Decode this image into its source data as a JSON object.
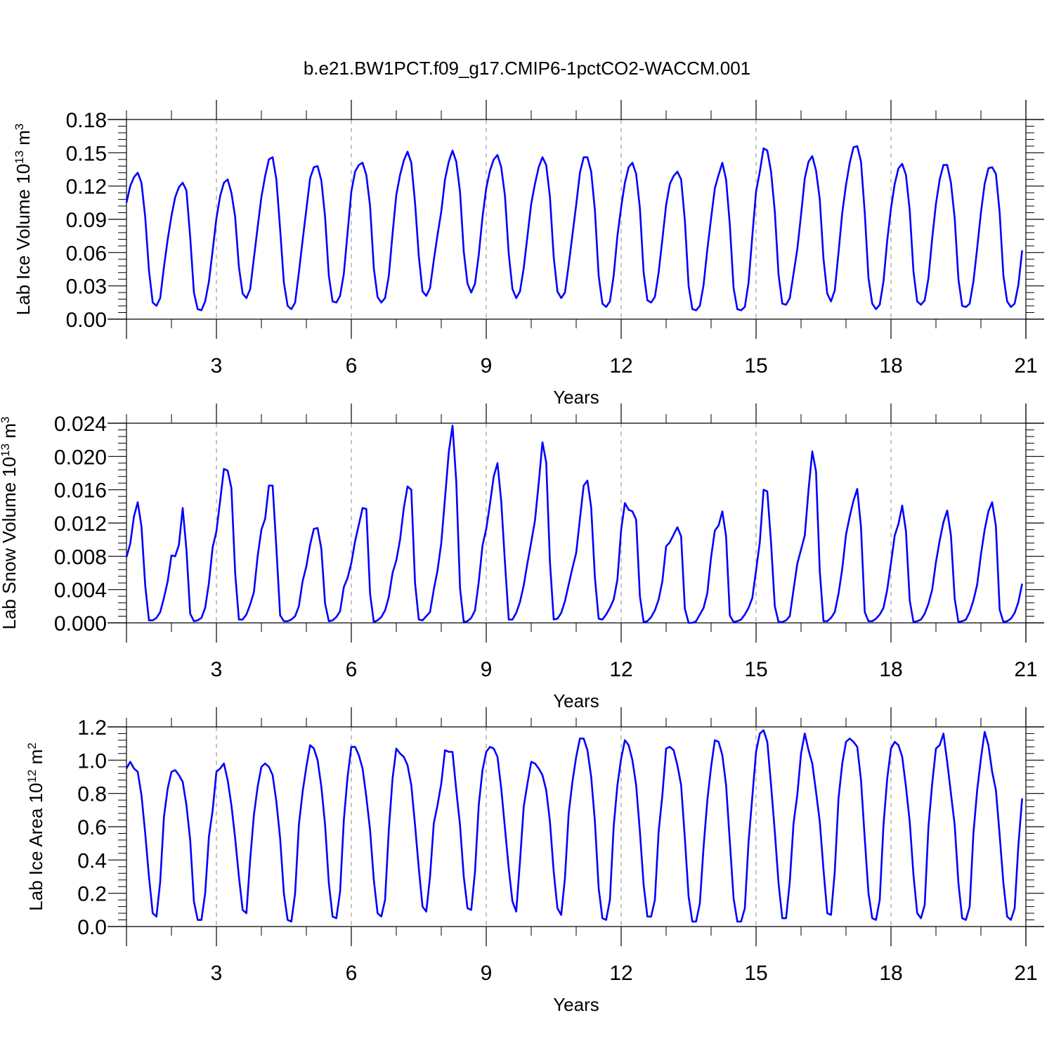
{
  "title": "b.e21.BW1PCT.f09_g17.CMIP6-1pctCO2-WACCM.001",
  "colors": {
    "series": "#0000ff",
    "axis": "#000000",
    "grid": "#888888"
  },
  "chart_data": [
    {
      "type": "line",
      "ylabel": "Lab Ice Volume 10",
      "ylabel_exp": "13",
      "ylabel_unit": " m",
      "ylabel_unit_exp": "3",
      "xlabel": "Years",
      "xlim": [
        1,
        21
      ],
      "ylim": [
        0.0,
        0.18
      ],
      "xticks": [
        3,
        6,
        9,
        12,
        15,
        18,
        21
      ],
      "yticks": [
        0.0,
        0.03,
        0.06,
        0.09,
        0.12,
        0.15,
        0.18
      ],
      "ytick_labels": [
        "0.00",
        "0.03",
        "0.06",
        "0.09",
        "0.12",
        "0.15",
        "0.18"
      ],
      "grid": "dashed vertical at x ticks",
      "series": [
        {
          "x_start": 1.0,
          "x_step": 0.0833333,
          "values": [
            0.105,
            0.12,
            0.128,
            0.132,
            0.123,
            0.092,
            0.044,
            0.015,
            0.012,
            0.019,
            0.047,
            0.072,
            0.093,
            0.11,
            0.119,
            0.123,
            0.116,
            0.074,
            0.024,
            0.009,
            0.008,
            0.016,
            0.034,
            0.062,
            0.091,
            0.111,
            0.123,
            0.126,
            0.114,
            0.092,
            0.047,
            0.023,
            0.019,
            0.027,
            0.055,
            0.083,
            0.11,
            0.129,
            0.144,
            0.146,
            0.126,
            0.081,
            0.033,
            0.012,
            0.009,
            0.015,
            0.042,
            0.071,
            0.099,
            0.127,
            0.137,
            0.138,
            0.125,
            0.092,
            0.039,
            0.016,
            0.015,
            0.021,
            0.041,
            0.078,
            0.115,
            0.133,
            0.139,
            0.141,
            0.13,
            0.102,
            0.046,
            0.02,
            0.015,
            0.019,
            0.039,
            0.077,
            0.112,
            0.13,
            0.143,
            0.151,
            0.141,
            0.105,
            0.057,
            0.025,
            0.021,
            0.028,
            0.053,
            0.076,
            0.097,
            0.126,
            0.142,
            0.152,
            0.142,
            0.115,
            0.061,
            0.032,
            0.024,
            0.032,
            0.058,
            0.092,
            0.118,
            0.134,
            0.144,
            0.148,
            0.137,
            0.111,
            0.059,
            0.027,
            0.019,
            0.025,
            0.046,
            0.075,
            0.104,
            0.122,
            0.137,
            0.146,
            0.139,
            0.11,
            0.056,
            0.025,
            0.019,
            0.024,
            0.049,
            0.076,
            0.103,
            0.132,
            0.146,
            0.146,
            0.133,
            0.098,
            0.039,
            0.014,
            0.011,
            0.016,
            0.039,
            0.075,
            0.101,
            0.123,
            0.137,
            0.141,
            0.131,
            0.1,
            0.042,
            0.017,
            0.015,
            0.02,
            0.042,
            0.072,
            0.103,
            0.122,
            0.129,
            0.133,
            0.126,
            0.089,
            0.03,
            0.009,
            0.008,
            0.012,
            0.031,
            0.063,
            0.091,
            0.118,
            0.13,
            0.141,
            0.126,
            0.085,
            0.028,
            0.009,
            0.008,
            0.011,
            0.033,
            0.075,
            0.115,
            0.133,
            0.154,
            0.152,
            0.133,
            0.097,
            0.04,
            0.014,
            0.013,
            0.019,
            0.041,
            0.063,
            0.094,
            0.127,
            0.142,
            0.147,
            0.134,
            0.108,
            0.054,
            0.023,
            0.016,
            0.026,
            0.06,
            0.096,
            0.121,
            0.141,
            0.155,
            0.156,
            0.142,
            0.096,
            0.037,
            0.014,
            0.009,
            0.013,
            0.034,
            0.071,
            0.1,
            0.122,
            0.136,
            0.14,
            0.13,
            0.098,
            0.043,
            0.016,
            0.013,
            0.017,
            0.037,
            0.073,
            0.104,
            0.126,
            0.139,
            0.139,
            0.123,
            0.091,
            0.036,
            0.012,
            0.011,
            0.014,
            0.034,
            0.064,
            0.096,
            0.122,
            0.136,
            0.137,
            0.131,
            0.096,
            0.039,
            0.016,
            0.011,
            0.014,
            0.031,
            0.062
          ]
        }
      ]
    },
    {
      "type": "line",
      "ylabel": "Lab Snow Volume 10",
      "ylabel_exp": "13",
      "ylabel_unit": " m",
      "ylabel_unit_exp": "3",
      "xlabel": "Years",
      "xlim": [
        1,
        21
      ],
      "ylim": [
        0.0,
        0.024
      ],
      "xticks": [
        3,
        6,
        9,
        12,
        15,
        18,
        21
      ],
      "yticks": [
        0.0,
        0.004,
        0.008,
        0.012,
        0.016,
        0.02,
        0.024
      ],
      "ytick_labels": [
        "0.000",
        "0.004",
        "0.008",
        "0.012",
        "0.016",
        "0.020",
        "0.024"
      ],
      "grid": "dashed vertical at x ticks",
      "series": [
        {
          "x_start": 1.0,
          "x_step": 0.0833333,
          "values": [
            0.0079,
            0.0095,
            0.0128,
            0.0145,
            0.0116,
            0.0045,
            0.0003,
            0.0003,
            0.0006,
            0.0013,
            0.003,
            0.005,
            0.0081,
            0.008,
            0.0094,
            0.0138,
            0.0088,
            0.0011,
            0.0002,
            0.0003,
            0.0006,
            0.0018,
            0.0048,
            0.0091,
            0.011,
            0.0147,
            0.0185,
            0.0183,
            0.0162,
            0.006,
            0.0004,
            0.0004,
            0.001,
            0.0022,
            0.0037,
            0.008,
            0.0112,
            0.0125,
            0.0165,
            0.0165,
            0.009,
            0.0009,
            0.0002,
            0.0002,
            0.0004,
            0.0008,
            0.002,
            0.005,
            0.0068,
            0.0094,
            0.0113,
            0.0114,
            0.0089,
            0.0023,
            0.0002,
            0.0003,
            0.0007,
            0.0014,
            0.0043,
            0.0054,
            0.0072,
            0.0098,
            0.0118,
            0.0138,
            0.0137,
            0.0035,
            0.0001,
            0.0003,
            0.0007,
            0.0015,
            0.0031,
            0.006,
            0.0075,
            0.01,
            0.0138,
            0.0164,
            0.016,
            0.0048,
            0.0004,
            0.0003,
            0.0008,
            0.0013,
            0.004,
            0.0063,
            0.0096,
            0.015,
            0.0205,
            0.0237,
            0.017,
            0.0042,
            0.0001,
            0.0002,
            0.0006,
            0.0015,
            0.0049,
            0.0093,
            0.0113,
            0.0143,
            0.0176,
            0.0192,
            0.0146,
            0.0072,
            0.0004,
            0.0004,
            0.0012,
            0.0025,
            0.0045,
            0.0072,
            0.0097,
            0.0123,
            0.0168,
            0.0217,
            0.0193,
            0.0073,
            0.0004,
            0.0005,
            0.0012,
            0.0026,
            0.0046,
            0.0066,
            0.0084,
            0.0125,
            0.0165,
            0.0171,
            0.0139,
            0.0054,
            0.0005,
            0.0004,
            0.001,
            0.0018,
            0.0028,
            0.0052,
            0.0112,
            0.0144,
            0.0136,
            0.0134,
            0.0124,
            0.0032,
            0.0001,
            0.0002,
            0.0007,
            0.0015,
            0.0028,
            0.005,
            0.0092,
            0.0097,
            0.0106,
            0.0115,
            0.0104,
            0.0017,
            0.0,
            0.0,
            0.0002,
            0.001,
            0.0018,
            0.0036,
            0.0079,
            0.0111,
            0.0117,
            0.0134,
            0.0104,
            0.0009,
            0.0001,
            0.0002,
            0.0004,
            0.001,
            0.0018,
            0.003,
            0.0063,
            0.0097,
            0.016,
            0.0158,
            0.0096,
            0.002,
            0.0001,
            0.0001,
            0.0003,
            0.0008,
            0.004,
            0.0071,
            0.0088,
            0.0105,
            0.016,
            0.0206,
            0.0182,
            0.0062,
            0.0002,
            0.0002,
            0.0006,
            0.0013,
            0.0035,
            0.0065,
            0.0106,
            0.0128,
            0.0147,
            0.0161,
            0.0115,
            0.0013,
            0.0002,
            0.0002,
            0.0005,
            0.001,
            0.0018,
            0.004,
            0.0072,
            0.0105,
            0.0119,
            0.0141,
            0.011,
            0.0027,
            0.0001,
            0.0002,
            0.0004,
            0.0011,
            0.0023,
            0.004,
            0.0073,
            0.0099,
            0.0121,
            0.0135,
            0.0105,
            0.0029,
            0.0001,
            0.0002,
            0.0004,
            0.0013,
            0.0027,
            0.0046,
            0.0082,
            0.0112,
            0.0134,
            0.0145,
            0.0116,
            0.0016,
            0.0001,
            0.0002,
            0.0005,
            0.0012,
            0.0025,
            0.0047
          ]
        }
      ]
    },
    {
      "type": "line",
      "ylabel": "Lab Ice Area 10",
      "ylabel_exp": "12",
      "ylabel_unit": " m",
      "ylabel_unit_exp": "2",
      "xlabel": "Years",
      "xlim": [
        1,
        21
      ],
      "ylim": [
        0.0,
        1.2
      ],
      "xticks": [
        3,
        6,
        9,
        12,
        15,
        18,
        21
      ],
      "yticks": [
        0.0,
        0.2,
        0.4,
        0.6,
        0.8,
        1.0,
        1.2
      ],
      "ytick_labels": [
        "0.0",
        "0.2",
        "0.4",
        "0.6",
        "0.8",
        "1.0",
        "1.2"
      ],
      "grid": "dashed vertical at x ticks",
      "series": [
        {
          "x_start": 1.0,
          "x_step": 0.0833333,
          "values": [
            0.95,
            0.99,
            0.95,
            0.93,
            0.79,
            0.56,
            0.3,
            0.08,
            0.06,
            0.27,
            0.66,
            0.83,
            0.93,
            0.94,
            0.91,
            0.87,
            0.73,
            0.52,
            0.15,
            0.04,
            0.04,
            0.2,
            0.54,
            0.7,
            0.93,
            0.95,
            0.98,
            0.88,
            0.73,
            0.53,
            0.3,
            0.1,
            0.08,
            0.4,
            0.67,
            0.84,
            0.96,
            0.98,
            0.96,
            0.91,
            0.75,
            0.53,
            0.2,
            0.04,
            0.03,
            0.2,
            0.61,
            0.81,
            0.96,
            1.09,
            1.07,
            1.0,
            0.84,
            0.61,
            0.26,
            0.06,
            0.05,
            0.21,
            0.64,
            0.9,
            1.08,
            1.08,
            1.03,
            0.95,
            0.78,
            0.58,
            0.28,
            0.08,
            0.06,
            0.16,
            0.58,
            0.89,
            1.07,
            1.04,
            1.02,
            0.97,
            0.85,
            0.61,
            0.35,
            0.12,
            0.09,
            0.3,
            0.62,
            0.73,
            0.86,
            1.06,
            1.05,
            1.05,
            0.82,
            0.61,
            0.3,
            0.11,
            0.1,
            0.33,
            0.73,
            0.94,
            1.05,
            1.08,
            1.07,
            1.02,
            0.83,
            0.59,
            0.35,
            0.15,
            0.09,
            0.39,
            0.72,
            0.86,
            0.99,
            0.98,
            0.95,
            0.91,
            0.82,
            0.63,
            0.33,
            0.11,
            0.07,
            0.29,
            0.68,
            0.87,
            1.02,
            1.13,
            1.13,
            1.06,
            0.9,
            0.63,
            0.23,
            0.05,
            0.04,
            0.16,
            0.6,
            0.85,
            1.01,
            1.12,
            1.09,
            1.0,
            0.85,
            0.57,
            0.25,
            0.06,
            0.06,
            0.16,
            0.57,
            0.79,
            1.07,
            1.08,
            1.06,
            0.97,
            0.85,
            0.53,
            0.18,
            0.03,
            0.03,
            0.14,
            0.48,
            0.76,
            0.96,
            1.12,
            1.11,
            1.03,
            0.85,
            0.51,
            0.17,
            0.03,
            0.03,
            0.11,
            0.51,
            0.78,
            1.05,
            1.16,
            1.18,
            1.11,
            0.85,
            0.57,
            0.26,
            0.05,
            0.05,
            0.27,
            0.62,
            0.79,
            1.04,
            1.16,
            1.06,
            0.98,
            0.81,
            0.63,
            0.34,
            0.08,
            0.07,
            0.33,
            0.77,
            0.98,
            1.11,
            1.13,
            1.11,
            1.08,
            0.88,
            0.53,
            0.2,
            0.05,
            0.04,
            0.16,
            0.61,
            0.89,
            1.07,
            1.11,
            1.09,
            1.02,
            0.84,
            0.63,
            0.31,
            0.08,
            0.05,
            0.13,
            0.6,
            0.86,
            1.07,
            1.09,
            1.16,
            0.99,
            0.8,
            0.61,
            0.26,
            0.05,
            0.04,
            0.12,
            0.56,
            0.82,
            1.01,
            1.17,
            1.09,
            0.93,
            0.82,
            0.55,
            0.26,
            0.06,
            0.04,
            0.11,
            0.49,
            0.77
          ]
        }
      ]
    }
  ]
}
